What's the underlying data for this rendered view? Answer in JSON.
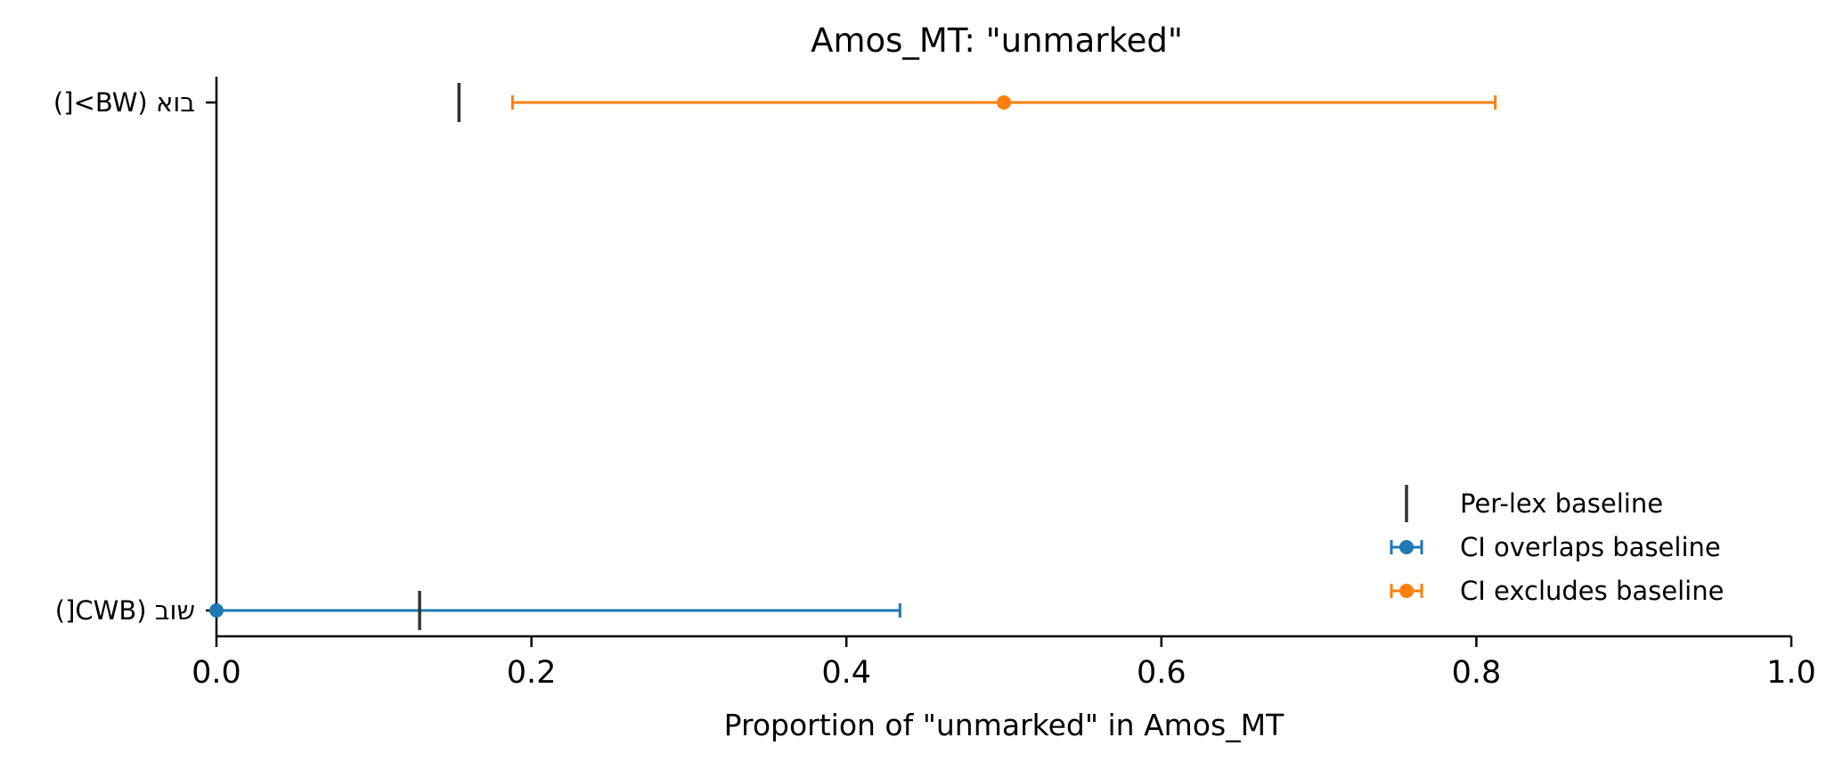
{
  "chart_data": {
    "type": "errorbar",
    "title": "Amos_MT: \"unmarked\"",
    "xlabel": "Proportion of \"unmarked\" in Amos_MT",
    "ylabel": "",
    "xlim": [
      0.0,
      1.0
    ],
    "xticks": [
      "0.0",
      "0.2",
      "0.4",
      "0.6",
      "0.8",
      "1.0"
    ],
    "xtick_values": [
      0.0,
      0.2,
      0.4,
      0.6,
      0.8,
      1.0
    ],
    "grid": false,
    "legend_position": "lower-right",
    "categories": [
      "בוא (BW>[)",
      "שוב (CWB[)"
    ],
    "points": [
      {
        "label": "בוא (BW>[)",
        "estimate": 0.5,
        "ci_low": 0.188,
        "ci_high": 0.812,
        "baseline": 0.154,
        "group": "excludes"
      },
      {
        "label": "שוב (CWB[)",
        "estimate": 0.0,
        "ci_low": 0.0,
        "ci_high": 0.434,
        "baseline": 0.129,
        "group": "overlaps"
      }
    ],
    "legend": [
      {
        "key": "baseline",
        "label": "Per-lex baseline",
        "color": "#333333"
      },
      {
        "key": "overlaps",
        "label": "CI overlaps baseline",
        "color": "#1f77b4"
      },
      {
        "key": "excludes",
        "label": "CI excludes baseline",
        "color": "#ff7f0e"
      }
    ],
    "colors": {
      "overlaps": "#1f77b4",
      "excludes": "#ff7f0e",
      "baseline": "#333333"
    }
  }
}
